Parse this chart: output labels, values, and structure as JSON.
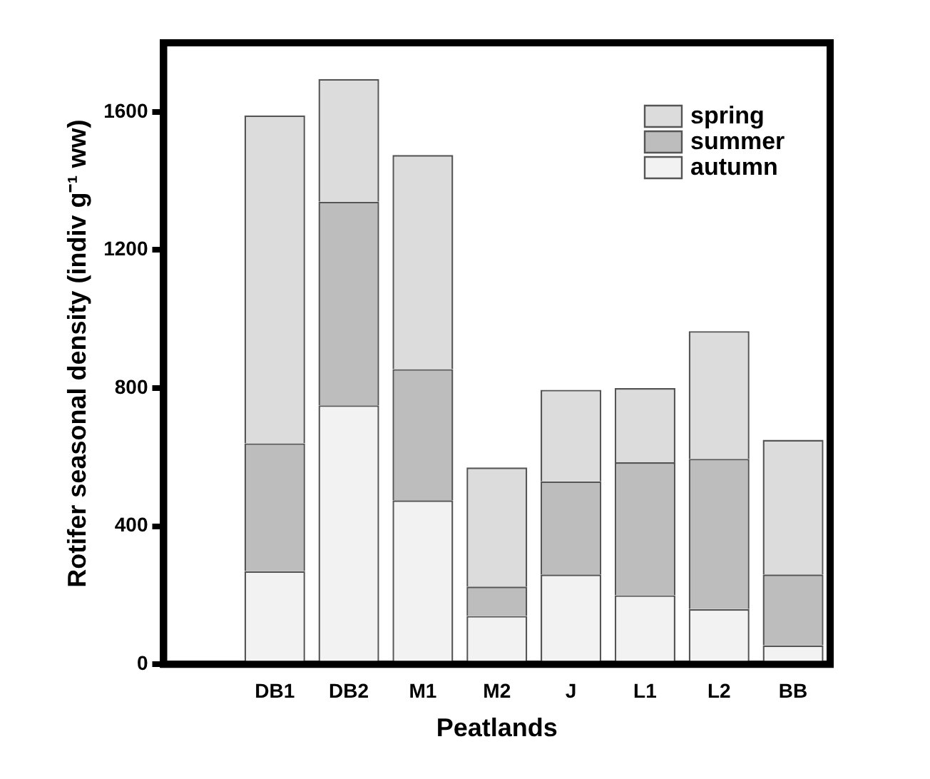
{
  "chart_data": {
    "type": "bar",
    "stacked": true,
    "xlabel": "Peatlands",
    "ylabel": "Rotifer seasonal density (indiv g⁻¹ ww)",
    "categories": [
      null,
      "DB1",
      "DB2",
      "M1",
      "M2",
      "J",
      "L1",
      "L2",
      "BB"
    ],
    "series": [
      {
        "name": "autumn",
        "color": "#f2f2f2",
        "values": [
          null,
          270,
          750,
          475,
          140,
          260,
          200,
          160,
          55
        ]
      },
      {
        "name": "summer",
        "color": "#bdbdbd",
        "values": [
          null,
          370,
          590,
          380,
          85,
          270,
          385,
          435,
          205
        ]
      },
      {
        "name": "spring",
        "color": "#dcdcdc",
        "values": [
          null,
          950,
          355,
          620,
          345,
          265,
          215,
          370,
          390
        ]
      }
    ],
    "ylim": [
      0,
      1800
    ],
    "yticks": [
      0,
      400,
      800,
      1200,
      1600
    ],
    "grid": false,
    "legend": "top right"
  }
}
